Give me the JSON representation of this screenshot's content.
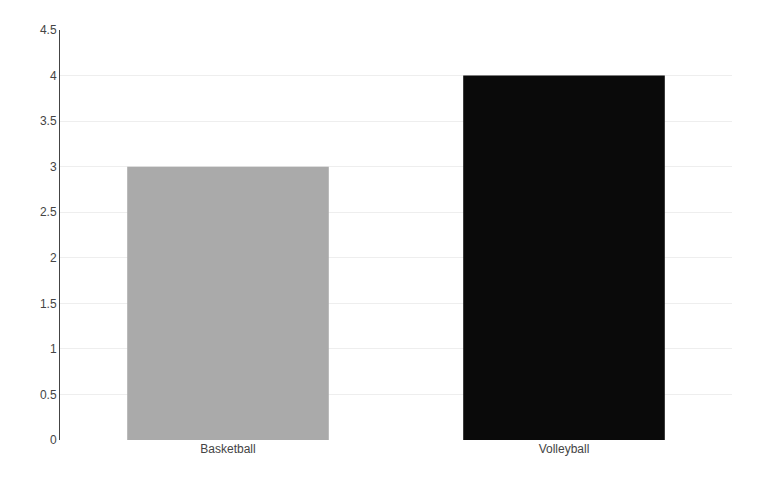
{
  "chart_data": {
    "type": "bar",
    "categories": [
      "Basketball",
      "Volleyball"
    ],
    "values": [
      3.0,
      4.0
    ],
    "colors": [
      "#aaaaaa",
      "#0a0a0a"
    ],
    "ylim": [
      0,
      4.5
    ],
    "yticks": [
      0,
      0.5,
      1,
      1.5,
      2,
      2.5,
      3,
      3.5,
      4,
      4.5
    ],
    "grid": true
  }
}
